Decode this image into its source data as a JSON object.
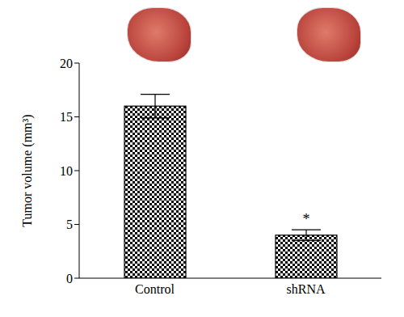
{
  "chart_data": {
    "type": "bar",
    "categories": [
      "Control",
      "shRNA"
    ],
    "values": [
      16.0,
      4.0
    ],
    "errors": [
      1.1,
      0.5
    ],
    "color": "#000000",
    "y_label": "Tumor volume (mm³)",
    "ylim": [
      0,
      20
    ],
    "yticks": [
      0,
      5,
      10,
      15,
      20
    ],
    "annotations": [
      {
        "category": "shRNA",
        "text": "*"
      }
    ],
    "grid": false
  }
}
